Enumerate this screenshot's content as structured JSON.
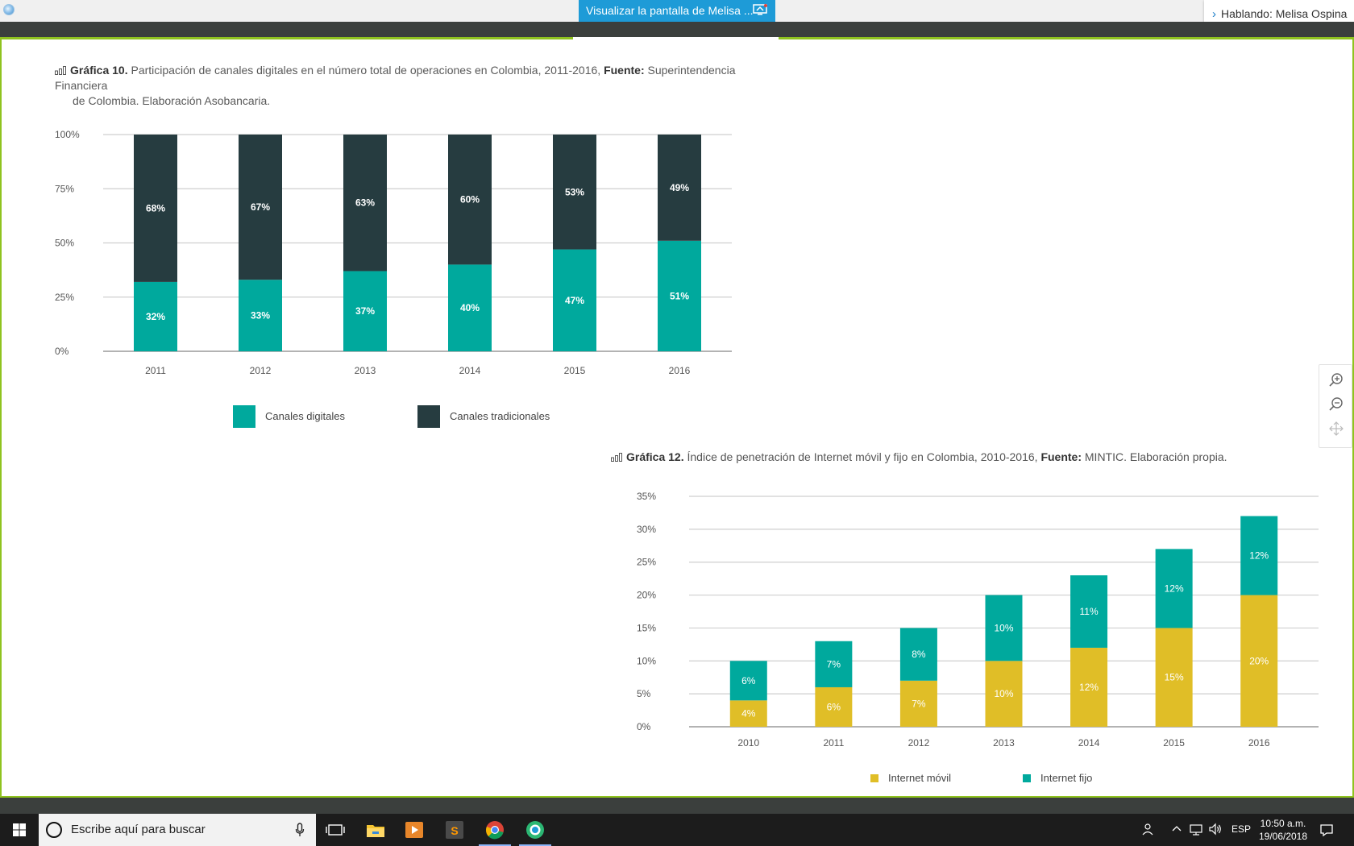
{
  "top_bar": {
    "share_banner": "Visualizar la pantalla de Melisa ...",
    "talking": "Hablando: Melisa Ospina"
  },
  "chart1_caption": {
    "label": "Gráfica 10.",
    "text": " Participación de canales digitales en el número total de operaciones en Colombia, 2011-2016, ",
    "source_label": "Fuente:",
    "source": " Superintendencia Financiera",
    "line2": "de Colombia. Elaboración Asobancaria."
  },
  "chart2_caption": {
    "label": "Gráfica 12.",
    "text": " Índice de penetración de Internet móvil y fijo en Colombia, 2010-2016, ",
    "source_label": "Fuente:",
    "source": " MINTIC. Elaboración propia."
  },
  "chart_data": [
    {
      "type": "bar",
      "stacked": true,
      "categories": [
        "2011",
        "2012",
        "2013",
        "2014",
        "2015",
        "2016"
      ],
      "series": [
        {
          "name": "Canales digitales",
          "values": [
            32,
            33,
            37,
            40,
            47,
            51
          ],
          "labels": [
            "32%",
            "33%",
            "37%",
            "40%",
            "47%",
            "51%"
          ],
          "color": "#00a99d"
        },
        {
          "name": "Canales tradicionales",
          "values": [
            68,
            67,
            63,
            60,
            53,
            49
          ],
          "labels": [
            "68%",
            "67%",
            "63%",
            "60%",
            "53%",
            "49%"
          ],
          "color": "#263c40"
        }
      ],
      "yticks": [
        "0%",
        "25%",
        "50%",
        "75%",
        "100%"
      ],
      "ylim": [
        0,
        100
      ],
      "grid": true,
      "legend_position": "bottom"
    },
    {
      "type": "bar",
      "stacked": true,
      "categories": [
        "2010",
        "2011",
        "2012",
        "2013",
        "2014",
        "2015",
        "2016"
      ],
      "series": [
        {
          "name": "Internet móvil",
          "values": [
            4,
            6,
            7,
            10,
            12,
            15,
            20
          ],
          "labels": [
            "4%",
            "6%",
            "7%",
            "10%",
            "12%",
            "15%",
            "20%"
          ],
          "color": "#e0be27"
        },
        {
          "name": "Internet fijo",
          "values": [
            6,
            7,
            8,
            10,
            11,
            12,
            12
          ],
          "labels": [
            "6%",
            "7%",
            "8%",
            "10%",
            "11%",
            "12%",
            "12%"
          ],
          "color": "#00a99d"
        }
      ],
      "yticks": [
        "0%",
        "5%",
        "10%",
        "15%",
        "20%",
        "25%",
        "30%",
        "35%"
      ],
      "ylim": [
        0,
        35
      ],
      "grid": true,
      "legend_position": "bottom"
    }
  ],
  "taskbar": {
    "search_placeholder": "Escribe aquí para buscar",
    "language": "ESP",
    "time": "10:50 a.m.",
    "date": "19/06/2018"
  },
  "colors": {
    "accent_green": "#8fc31f",
    "banner_blue": "#1e9bd7",
    "dark_bar": "#3b3f3d"
  }
}
